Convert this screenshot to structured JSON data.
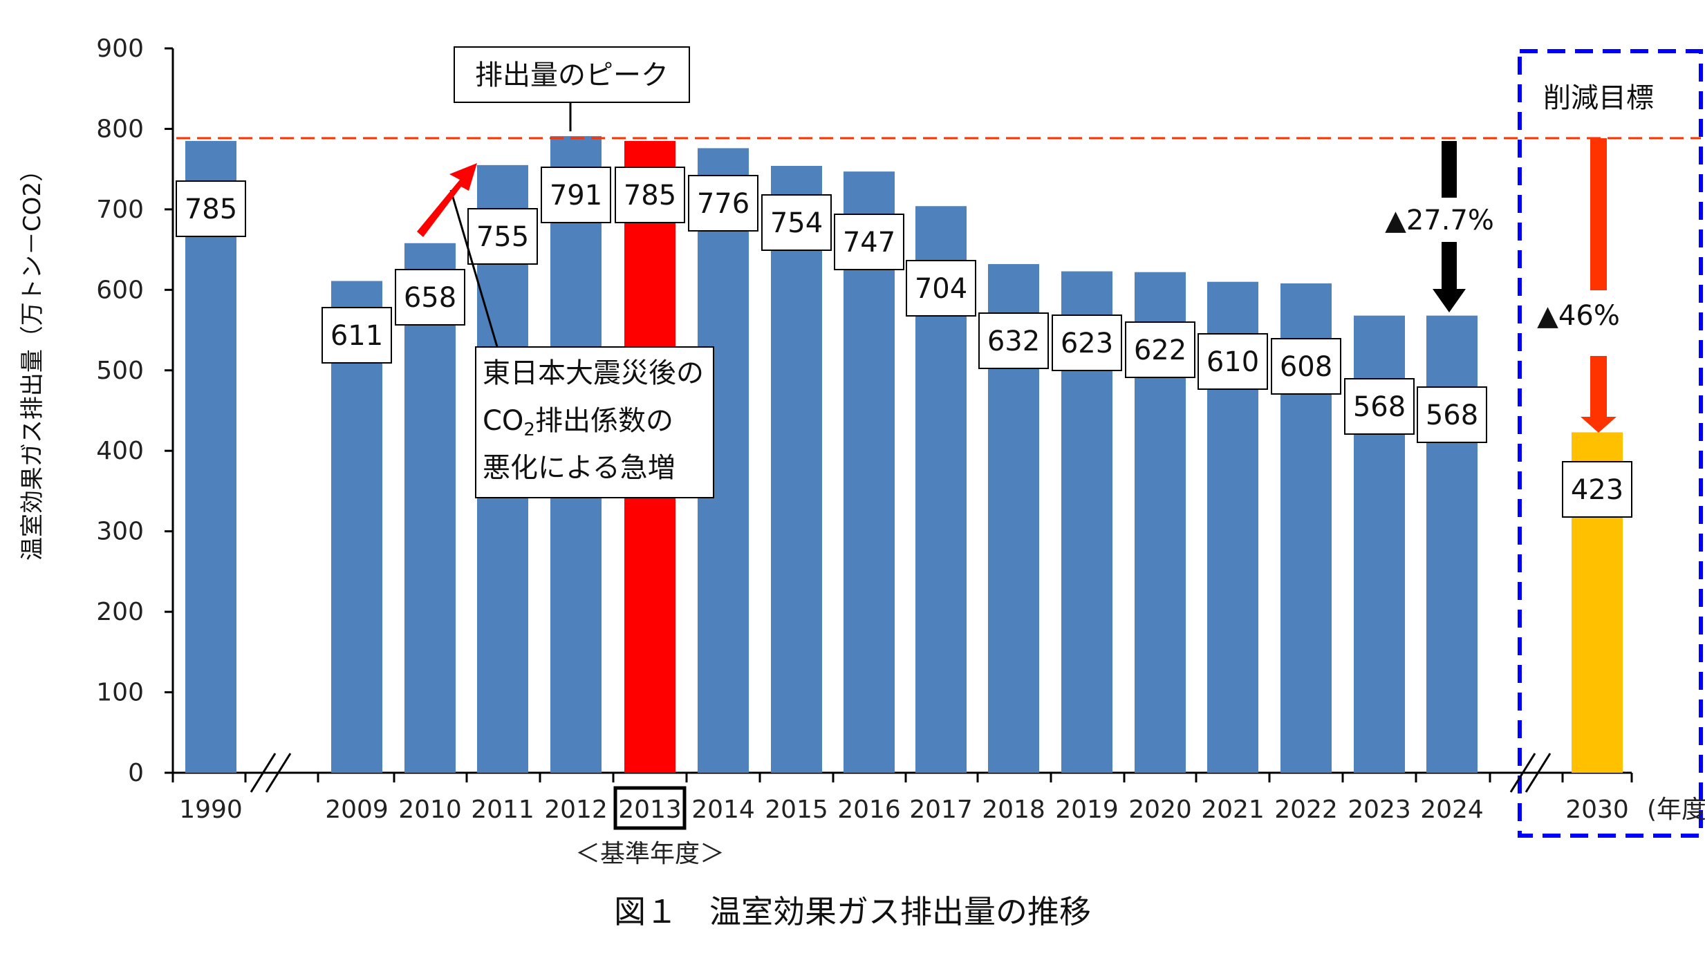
{
  "chart_data": {
    "type": "bar",
    "ylabel": "温室効果ガス排出量（万トン－CO2）",
    "ylim": [
      0,
      900
    ],
    "yticks": [
      0,
      100,
      200,
      300,
      400,
      500,
      600,
      700,
      800,
      900
    ],
    "x_unit": "(年度)",
    "categories": [
      "1990",
      "2009",
      "2010",
      "2011",
      "2012",
      "2013",
      "2014",
      "2015",
      "2016",
      "2017",
      "2018",
      "2019",
      "2020",
      "2021",
      "2022",
      "2023",
      "2024",
      "2030"
    ],
    "values": [
      785,
      611,
      658,
      755,
      791,
      785,
      776,
      754,
      747,
      704,
      632,
      623,
      622,
      610,
      608,
      568,
      568,
      423
    ],
    "data_labels": [
      "785",
      "611",
      "658",
      "755",
      "791",
      "785",
      "776",
      "754",
      "747",
      "704",
      "632",
      "623",
      "622",
      "610",
      "608",
      "568",
      "568",
      "423"
    ],
    "bar_colors": [
      "#4f81bd",
      "#4f81bd",
      "#4f81bd",
      "#4f81bd",
      "#4f81bd",
      "#ff0000",
      "#4f81bd",
      "#4f81bd",
      "#4f81bd",
      "#4f81bd",
      "#4f81bd",
      "#4f81bd",
      "#4f81bd",
      "#4f81bd",
      "#4f81bd",
      "#4f81bd",
      "#4f81bd",
      "#ffc000"
    ],
    "reference_line": 785,
    "base_year_label": "＜基準年度＞",
    "annotations": {
      "peak": "排出量のピーク",
      "quake_line1": "東日本大震災後の",
      "quake_line2_co": "CO",
      "quake_line2_sub": "2",
      "quake_line2_rest": "排出係数の",
      "quake_line3": "悪化による急増",
      "reduction_2024": "▲27.7%",
      "target_title": "削減目標",
      "target_reduction": "▲46%"
    },
    "colors": {
      "bar": "#4f81bd",
      "base": "#ff0000",
      "target": "#ffc000",
      "refline": "#ff3300",
      "target_box": "#0000ff",
      "arrow_black": "#000000",
      "arrow_red": "#ff3300"
    },
    "caption": "図１　温室効果ガス排出量の推移"
  }
}
